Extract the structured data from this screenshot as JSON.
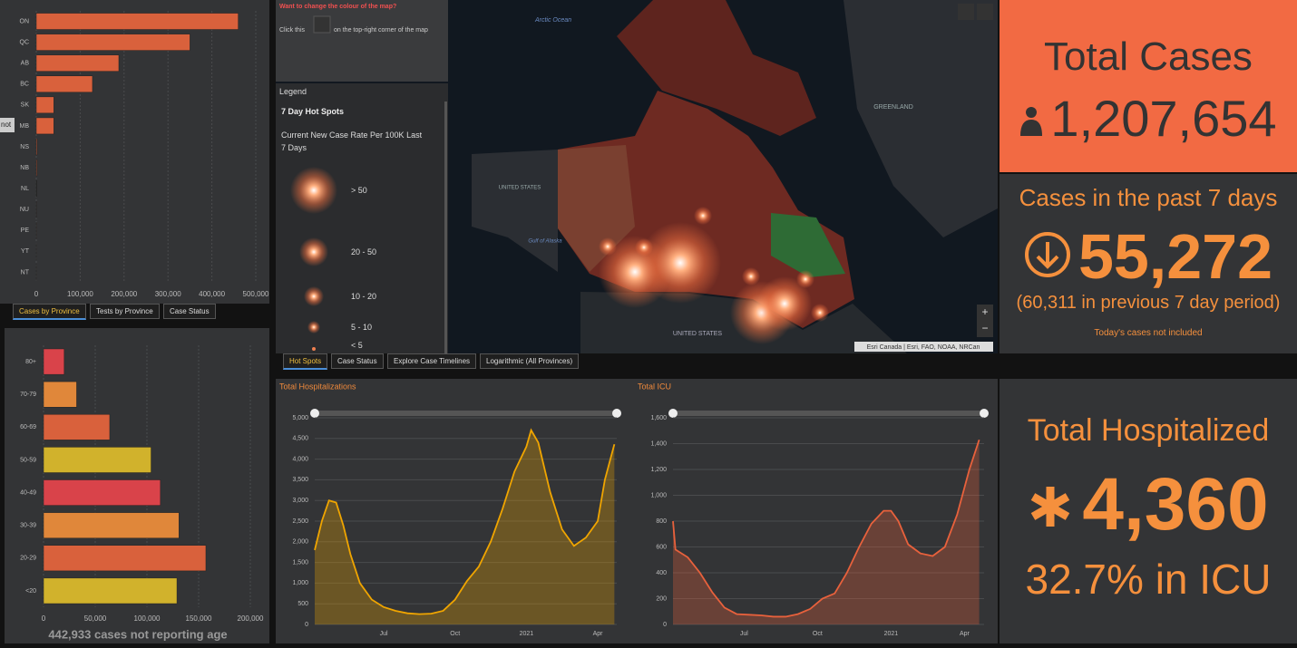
{
  "chart_data": [
    {
      "type": "bar",
      "categories": [
        "ON",
        "QC",
        "AB",
        "BC",
        "SK",
        "MB",
        "NS",
        "NB",
        "NL",
        "NU",
        "PE",
        "YT",
        "NT"
      ],
      "values": [
        460000,
        350000,
        188000,
        128000,
        40000,
        40000,
        2000,
        1800,
        1000,
        400,
        200,
        80,
        50
      ],
      "color": "#d9613c",
      "xlim": [
        0,
        500000
      ],
      "xticks": [
        0,
        {
          "value": 100000,
          "label": "100,000"
        },
        {
          "value": 200000,
          "label": "200,000"
        },
        {
          "value": 300000,
          "label": "300,000"
        },
        {
          "value": 400000,
          "label": "400,000"
        },
        {
          "value": 500000,
          "label": "500,000"
        }
      ],
      "grid": true
    },
    {
      "type": "bar",
      "categories": [
        "80+",
        "70-79",
        "60-69",
        "50-59",
        "40-49",
        "30-39",
        "20-29",
        "<20"
      ],
      "values": [
        20000,
        32000,
        64000,
        104000,
        113000,
        131000,
        157000,
        129000
      ],
      "colors": [
        "#d9434a",
        "#e0873a",
        "#d9613c",
        "#d1b22c",
        "#d9434a",
        "#e0873a",
        "#d9613c",
        "#d1b22c"
      ],
      "xlim": [
        0,
        200000
      ],
      "xticks": [
        0,
        {
          "value": 50000,
          "label": "50,000"
        },
        {
          "value": 100000,
          "label": "100,000"
        },
        {
          "value": 150000,
          "label": "150,000"
        },
        {
          "value": 200000,
          "label": "200,000"
        }
      ],
      "grid": true,
      "note": "442,933 cases not reporting age"
    },
    {
      "type": "line",
      "title": "Total Hospitalizations",
      "color": "#f0a500",
      "x": [
        1.1,
        1.4,
        1.7,
        2.0,
        2.3,
        2.6,
        3.0,
        3.5,
        4.0,
        4.5,
        5.0,
        5.5,
        6.0,
        6.5,
        7.0,
        7.5,
        8.0,
        8.5,
        9.0,
        9.5,
        10.0,
        10.2,
        10.5,
        11.0,
        11.5,
        12.0,
        12.5,
        13.0,
        13.3,
        13.7
      ],
      "values": [
        1800,
        2500,
        3000,
        2950,
        2400,
        1700,
        1000,
        600,
        420,
        330,
        270,
        250,
        260,
        330,
        600,
        1050,
        1400,
        2000,
        2800,
        3700,
        4300,
        4700,
        4400,
        3200,
        2300,
        1900,
        2100,
        2500,
        3500,
        4360
      ],
      "xlim": [
        1.1,
        13.8
      ],
      "xticks": [
        {
          "value": 4,
          "label": "Jul"
        },
        {
          "value": 7,
          "label": "Oct"
        },
        {
          "value": 10,
          "label": "2021"
        },
        {
          "value": 13,
          "label": "Apr"
        }
      ],
      "ylim": [
        0,
        5000
      ],
      "yticks": [
        0,
        500,
        {
          "value": 1000,
          "label": "1,000"
        },
        {
          "value": 1500,
          "label": "1,500"
        },
        {
          "value": 2000,
          "label": "2,000"
        },
        {
          "value": 2500,
          "label": "2,500"
        },
        {
          "value": 3000,
          "label": "3,000"
        },
        {
          "value": 3500,
          "label": "3,500"
        },
        {
          "value": 4000,
          "label": "4,000"
        },
        {
          "value": 4500,
          "label": "4,500"
        },
        {
          "value": 5000,
          "label": "5,000"
        }
      ],
      "grid": true
    },
    {
      "type": "line",
      "title": "Total ICU",
      "color": "#e8613c",
      "x": [
        1.1,
        1.2,
        1.7,
        2.2,
        2.7,
        3.2,
        3.7,
        4.2,
        4.7,
        5.2,
        5.7,
        6.2,
        6.7,
        7.2,
        7.7,
        8.2,
        8.7,
        9.2,
        9.7,
        10.0,
        10.3,
        10.7,
        11.2,
        11.7,
        12.2,
        12.7,
        13.2,
        13.6
      ],
      "values": [
        800,
        580,
        520,
        400,
        250,
        130,
        80,
        75,
        70,
        60,
        60,
        80,
        120,
        200,
        240,
        400,
        600,
        780,
        880,
        880,
        800,
        620,
        550,
        530,
        600,
        850,
        1200,
        1430
      ],
      "xlim": [
        1.1,
        13.8
      ],
      "xticks": [
        {
          "value": 4,
          "label": "Jul"
        },
        {
          "value": 7,
          "label": "Oct"
        },
        {
          "value": 10,
          "label": "2021"
        },
        {
          "value": 13,
          "label": "Apr"
        }
      ],
      "ylim": [
        0,
        1600
      ],
      "yticks": [
        0,
        200,
        400,
        600,
        800,
        {
          "value": 1000,
          "label": "1,000"
        },
        {
          "value": 1200,
          "label": "1,200"
        },
        {
          "value": 1400,
          "label": "1,400"
        },
        {
          "value": 1600,
          "label": "1,600"
        }
      ],
      "grid": true
    }
  ],
  "tooltip": "not",
  "tabs_left": [
    "Cases by Province",
    "Tests by Province",
    "Case Status"
  ],
  "tabs_map": [
    "Hot Spots",
    "Case Status",
    "Explore Case Timelines",
    "Logarithmic (All Provinces)"
  ],
  "map_note": {
    "title": "Want to change the colour of the map?",
    "before": "Click this",
    "after": "on the top-right corner of the map"
  },
  "legend": {
    "heading": "Legend",
    "layer": "7 Day Hot Spots",
    "description": "Current New Case Rate Per 100K Last 7 Days",
    "classes": [
      "> 50",
      "20 - 50",
      "10 - 20",
      "5 - 10",
      "< 5"
    ]
  },
  "map": {
    "labels": [
      "Arctic Ocean",
      "GREENLAND",
      "UNITED STATES",
      "Gulf of Alaska",
      "UNITED STATES"
    ],
    "attribution": "Esri Canada | Esri, FAO, NOAA, NRCan"
  },
  "stats": {
    "total_cases": {
      "title": "Total Cases",
      "value": "1,207,654"
    },
    "past_week": {
      "title": "Cases in the past 7 days",
      "value": "55,272",
      "note": "(60,311 in previous 7 day period)",
      "footnote": "Today's cases not included"
    },
    "hospitalized": {
      "title": "Total Hospitalized",
      "value": "4,360",
      "icu": "32.7% in ICU"
    }
  }
}
